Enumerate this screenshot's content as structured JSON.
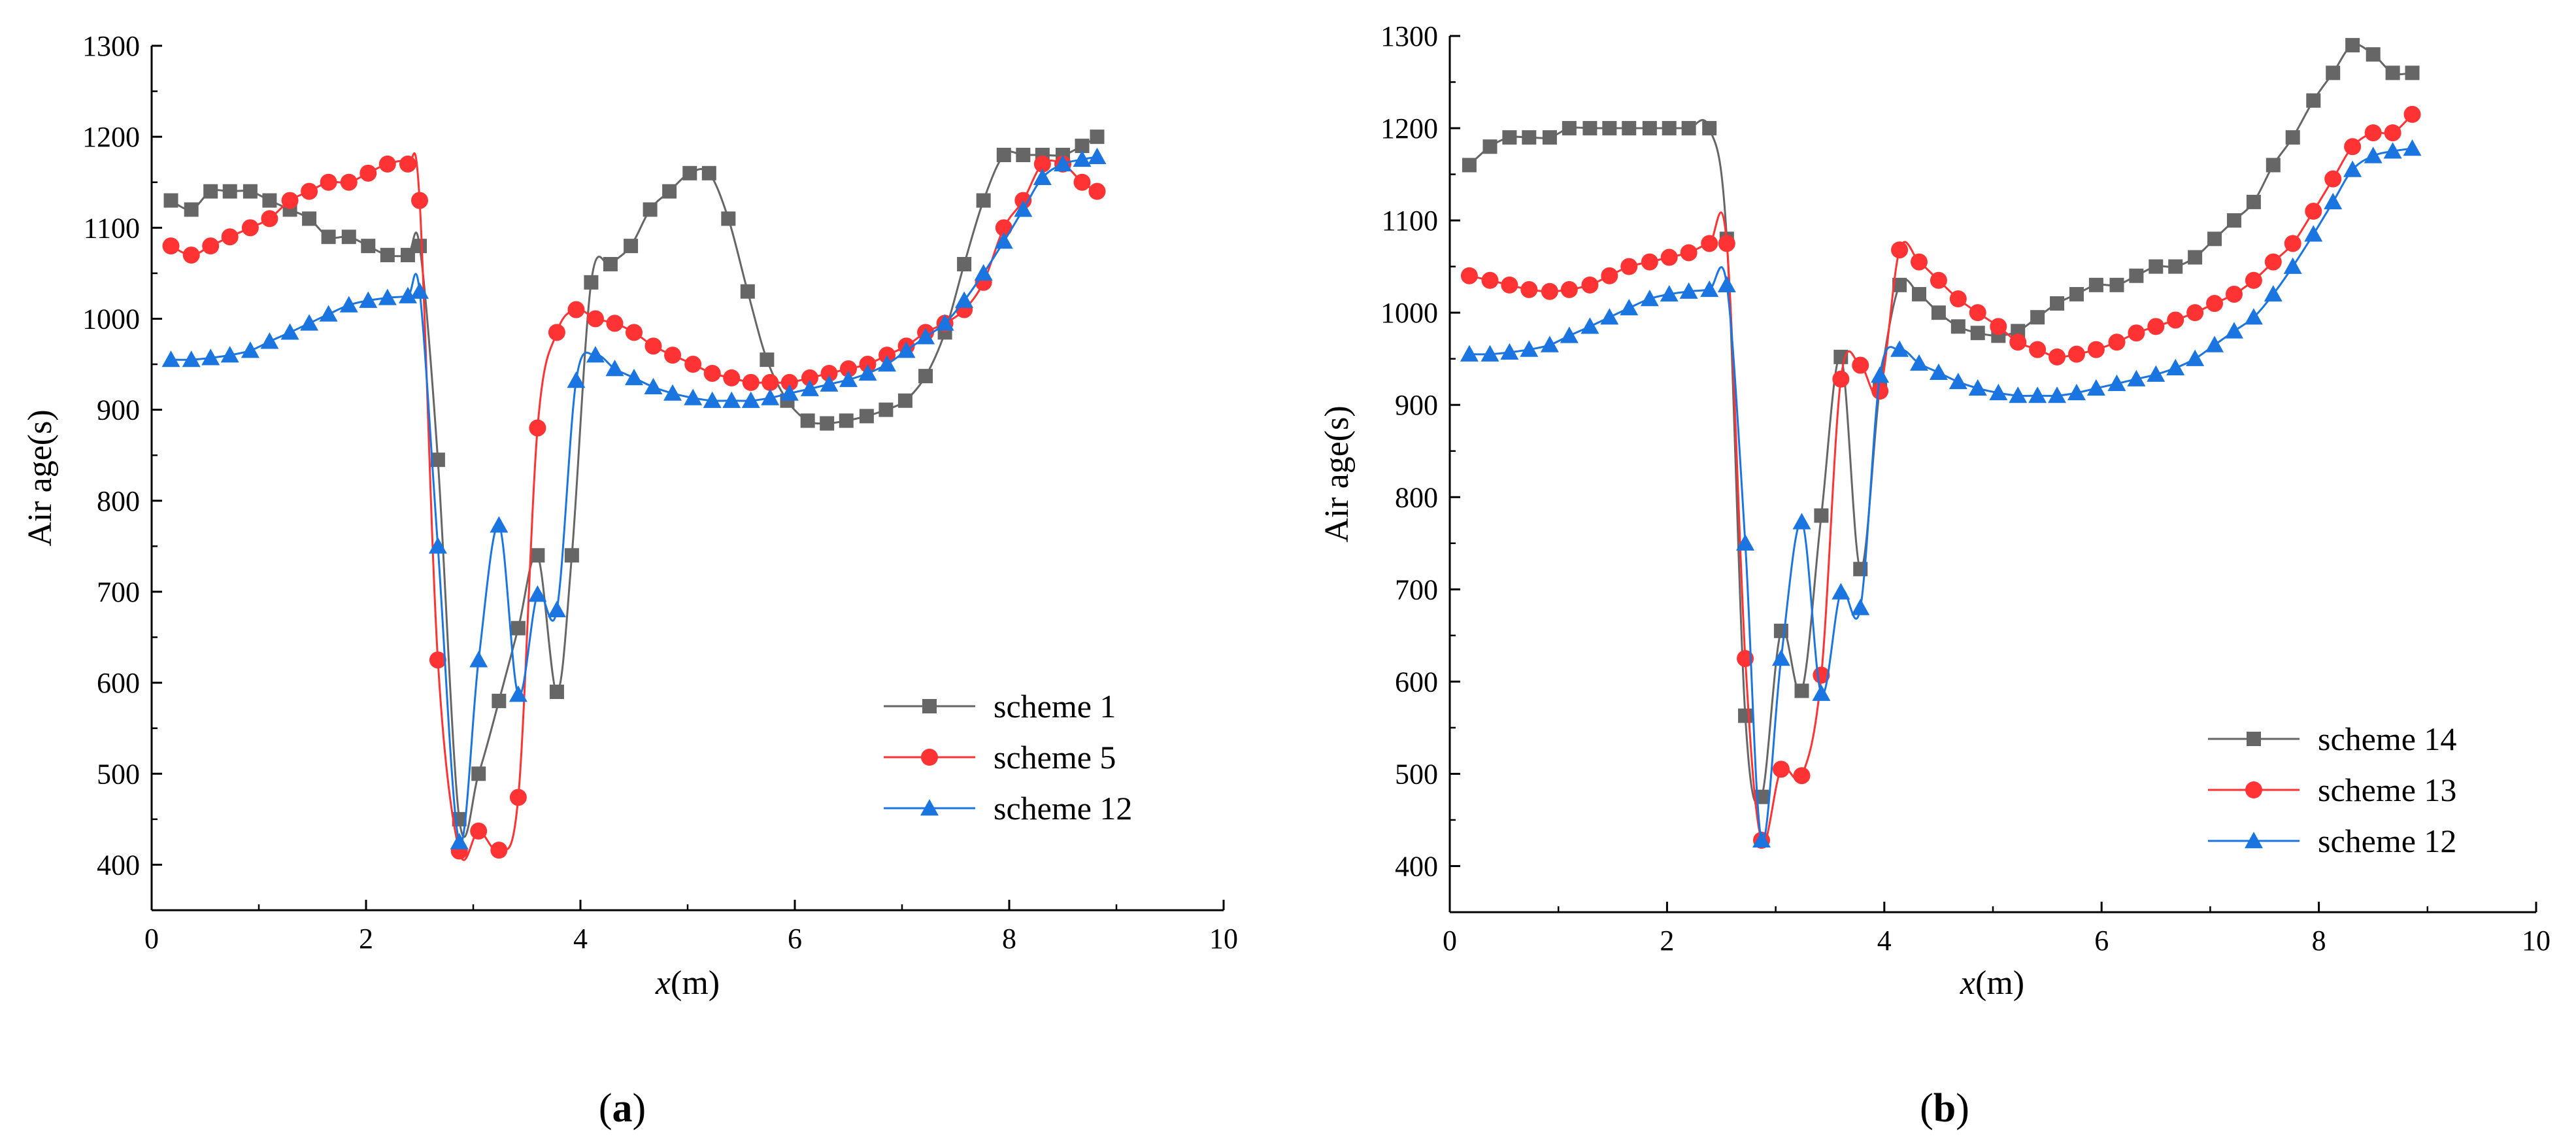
{
  "chart_data": [
    {
      "type": "line",
      "panel_label": "(a)",
      "panel_letter": "a",
      "xlabel": "x(m)",
      "xlabel_var": "x",
      "xlabel_unit": "(m)",
      "ylabel": "Air age(s)",
      "xlim": [
        0,
        10
      ],
      "ylim": [
        350,
        1300
      ],
      "xticks": [
        0,
        2,
        4,
        6,
        8,
        10
      ],
      "yticks": [
        400,
        500,
        600,
        700,
        800,
        900,
        1000,
        1100,
        1200,
        1300
      ],
      "legend_position": "bottom-right",
      "series": [
        {
          "name": "scheme 1",
          "color": "#666666",
          "marker": "square",
          "x": [
            0.18,
            0.37,
            0.55,
            0.73,
            0.92,
            1.1,
            1.29,
            1.47,
            1.65,
            1.84,
            2.02,
            2.2,
            2.39,
            2.5,
            2.67,
            2.87,
            3.05,
            3.24,
            3.42,
            3.6,
            3.78,
            3.92,
            4.1,
            4.28,
            4.47,
            4.65,
            4.83,
            5.02,
            5.2,
            5.38,
            5.56,
            5.74,
            5.93,
            6.12,
            6.3,
            6.48,
            6.67,
            6.85,
            7.03,
            7.22,
            7.4,
            7.58,
            7.76,
            7.95,
            8.13,
            8.31,
            8.5,
            8.68,
            8.82
          ],
          "values": [
            1130,
            1120,
            1140,
            1140,
            1140,
            1130,
            1120,
            1110,
            1090,
            1090,
            1080,
            1070,
            1070,
            1080,
            845,
            450,
            500,
            580,
            660,
            740,
            590,
            740,
            1040,
            1060,
            1080,
            1120,
            1140,
            1160,
            1160,
            1110,
            1030,
            955,
            910,
            888,
            885,
            888,
            893,
            900,
            910,
            937,
            985,
            1060,
            1130,
            1180,
            1180,
            1180,
            1180,
            1190,
            1200
          ]
        },
        {
          "name": "scheme 5",
          "color": "#ff3333",
          "marker": "circle",
          "x": [
            0.18,
            0.37,
            0.55,
            0.73,
            0.92,
            1.1,
            1.29,
            1.47,
            1.65,
            1.84,
            2.02,
            2.2,
            2.39,
            2.5,
            2.67,
            2.87,
            3.05,
            3.24,
            3.42,
            3.6,
            3.78,
            3.96,
            4.14,
            4.32,
            4.5,
            4.68,
            4.86,
            5.05,
            5.23,
            5.41,
            5.59,
            5.77,
            5.95,
            6.14,
            6.32,
            6.5,
            6.68,
            6.86,
            7.04,
            7.22,
            7.4,
            7.58,
            7.76,
            7.95,
            8.13,
            8.31,
            8.5,
            8.68,
            8.82
          ],
          "values": [
            1080,
            1070,
            1080,
            1090,
            1100,
            1110,
            1130,
            1140,
            1150,
            1150,
            1160,
            1170,
            1170,
            1130,
            625,
            415,
            437,
            416,
            474,
            880,
            985,
            1010,
            1000,
            995,
            985,
            970,
            960,
            950,
            940,
            935,
            930,
            930,
            930,
            935,
            940,
            945,
            950,
            960,
            970,
            985,
            995,
            1010,
            1040,
            1100,
            1130,
            1170,
            1170,
            1150,
            1140
          ]
        },
        {
          "name": "scheme 12",
          "color": "#1a75e0",
          "marker": "triangle",
          "x": [
            0.18,
            0.37,
            0.55,
            0.73,
            0.92,
            1.1,
            1.29,
            1.47,
            1.65,
            1.84,
            2.02,
            2.2,
            2.39,
            2.5,
            2.67,
            2.87,
            3.05,
            3.24,
            3.42,
            3.6,
            3.78,
            3.96,
            4.14,
            4.32,
            4.5,
            4.68,
            4.86,
            5.05,
            5.23,
            5.41,
            5.59,
            5.77,
            5.95,
            6.14,
            6.32,
            6.5,
            6.68,
            6.86,
            7.04,
            7.22,
            7.4,
            7.58,
            7.76,
            7.95,
            8.13,
            8.31,
            8.5,
            8.68,
            8.82
          ],
          "values": [
            955,
            955,
            957,
            960,
            965,
            975,
            985,
            995,
            1005,
            1015,
            1020,
            1023,
            1025,
            1030,
            750,
            425,
            625,
            773,
            587,
            697,
            680,
            932,
            960,
            945,
            935,
            925,
            918,
            913,
            910,
            910,
            910,
            913,
            918,
            923,
            928,
            933,
            940,
            950,
            965,
            980,
            995,
            1020,
            1050,
            1085,
            1120,
            1155,
            1170,
            1175,
            1178
          ]
        }
      ]
    },
    {
      "type": "line",
      "panel_label": "(b)",
      "panel_letter": "b",
      "xlabel": "x(m)",
      "xlabel_var": "x",
      "xlabel_unit": "(m)",
      "ylabel": "Air age(s)",
      "xlim": [
        0,
        10
      ],
      "ylim": [
        350,
        1300
      ],
      "xticks": [
        0,
        2,
        4,
        6,
        8,
        10
      ],
      "yticks": [
        400,
        500,
        600,
        700,
        800,
        900,
        1000,
        1100,
        1200,
        1300
      ],
      "legend_position": "bottom-right",
      "series": [
        {
          "name": "scheme 14",
          "color": "#666666",
          "marker": "square",
          "x": [
            0.18,
            0.37,
            0.55,
            0.73,
            0.92,
            1.1,
            1.29,
            1.47,
            1.65,
            1.84,
            2.02,
            2.2,
            2.39,
            2.55,
            2.72,
            2.87,
            3.05,
            3.24,
            3.42,
            3.6,
            3.78,
            3.96,
            4.14,
            4.32,
            4.5,
            4.68,
            4.86,
            5.05,
            5.23,
            5.41,
            5.59,
            5.77,
            5.95,
            6.14,
            6.32,
            6.5,
            6.68,
            6.86,
            7.04,
            7.22,
            7.4,
            7.58,
            7.76,
            7.95,
            8.13,
            8.31,
            8.5,
            8.68,
            8.86
          ],
          "values": [
            1160,
            1180,
            1190,
            1190,
            1190,
            1200,
            1200,
            1200,
            1200,
            1200,
            1200,
            1200,
            1200,
            1080,
            563,
            475,
            655,
            590,
            780,
            952,
            722,
            920,
            1030,
            1020,
            1000,
            985,
            978,
            975,
            980,
            995,
            1010,
            1020,
            1030,
            1030,
            1040,
            1050,
            1050,
            1060,
            1080,
            1100,
            1120,
            1160,
            1190,
            1230,
            1260,
            1290,
            1280,
            1260,
            1260
          ]
        },
        {
          "name": "scheme 13",
          "color": "#ff3333",
          "marker": "circle",
          "x": [
            0.18,
            0.37,
            0.55,
            0.73,
            0.92,
            1.1,
            1.29,
            1.47,
            1.65,
            1.84,
            2.02,
            2.2,
            2.39,
            2.55,
            2.72,
            2.87,
            3.05,
            3.24,
            3.42,
            3.6,
            3.78,
            3.96,
            4.14,
            4.32,
            4.5,
            4.68,
            4.86,
            5.05,
            5.23,
            5.41,
            5.59,
            5.77,
            5.95,
            6.14,
            6.32,
            6.5,
            6.68,
            6.86,
            7.04,
            7.22,
            7.4,
            7.58,
            7.76,
            7.95,
            8.13,
            8.31,
            8.5,
            8.68,
            8.86
          ],
          "values": [
            1040,
            1035,
            1030,
            1025,
            1023,
            1025,
            1030,
            1040,
            1050,
            1055,
            1060,
            1065,
            1075,
            1075,
            625,
            428,
            505,
            498,
            607,
            928,
            943,
            915,
            1068,
            1055,
            1035,
            1015,
            1000,
            985,
            968,
            960,
            952,
            955,
            960,
            968,
            978,
            985,
            992,
            1000,
            1010,
            1020,
            1035,
            1055,
            1075,
            1110,
            1145,
            1180,
            1195,
            1195,
            1215
          ]
        },
        {
          "name": "scheme 12",
          "color": "#1a75e0",
          "marker": "triangle",
          "x": [
            0.18,
            0.37,
            0.55,
            0.73,
            0.92,
            1.1,
            1.29,
            1.47,
            1.65,
            1.84,
            2.02,
            2.2,
            2.39,
            2.55,
            2.72,
            2.87,
            3.05,
            3.24,
            3.42,
            3.6,
            3.78,
            3.96,
            4.14,
            4.32,
            4.5,
            4.68,
            4.86,
            5.05,
            5.23,
            5.41,
            5.59,
            5.77,
            5.95,
            6.14,
            6.32,
            6.5,
            6.68,
            6.86,
            7.04,
            7.22,
            7.4,
            7.58,
            7.76,
            7.95,
            8.13,
            8.31,
            8.5,
            8.68,
            8.86
          ],
          "values": [
            955,
            955,
            957,
            960,
            965,
            975,
            985,
            995,
            1005,
            1015,
            1020,
            1023,
            1025,
            1030,
            750,
            428,
            625,
            773,
            587,
            697,
            680,
            932,
            960,
            945,
            935,
            925,
            918,
            913,
            910,
            910,
            910,
            913,
            918,
            923,
            928,
            933,
            940,
            950,
            965,
            980,
            995,
            1020,
            1050,
            1085,
            1120,
            1155,
            1170,
            1175,
            1178
          ]
        }
      ]
    }
  ]
}
